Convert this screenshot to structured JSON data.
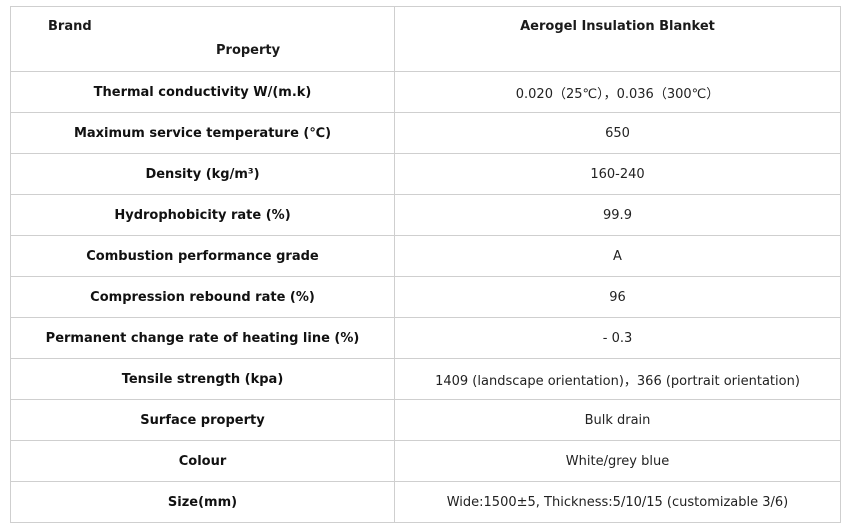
{
  "table": {
    "header": {
      "corner_top": "Brand",
      "corner_bottom": "Property",
      "product": "Aerogel Insulation Blanket"
    },
    "rows": [
      {
        "property": "Thermal conductivity W/(m.k)",
        "value": "0.020（25℃），0.036（300℃）"
      },
      {
        "property": "Maximum service temperature (℃)",
        "value": "650"
      },
      {
        "property": "Density (kg/m³)",
        "value": "160-240"
      },
      {
        "property": "Hydrophobicity rate (%)",
        "value": "99.9"
      },
      {
        "property": "Combustion performance grade",
        "value": "A"
      },
      {
        "property": "Compression rebound rate (%)",
        "value": "96"
      },
      {
        "property": "Permanent change rate of heating line (%)",
        "value": "- 0.3"
      },
      {
        "property": "Tensile strength (kpa)",
        "value": "1409 (landscape orientation)，366 (portrait orientation)"
      },
      {
        "property": "Surface property",
        "value": "Bulk drain"
      },
      {
        "property": "Colour",
        "value": "White/grey blue"
      },
      {
        "property": "Size(mm)",
        "value": "Wide:1500±5, Thickness:5/10/15 (customizable 3/6)"
      }
    ]
  },
  "colors": {
    "border": "#cfcfcf",
    "text": "#1a1a1a",
    "background": "#ffffff"
  }
}
